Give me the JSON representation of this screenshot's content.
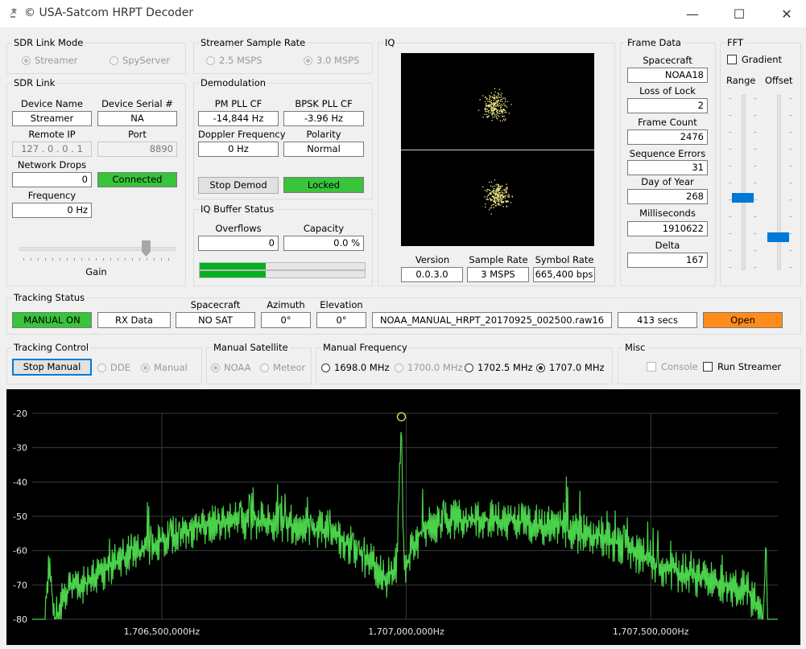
{
  "window": {
    "title": "© USA-Satcom HRPT Decoder",
    "minimize": "—",
    "maximize": "☐",
    "close": "✕"
  },
  "sdr_link_mode": {
    "legend": "SDR Link Mode",
    "options": [
      "Streamer",
      "SpyServer"
    ],
    "selected": "Streamer"
  },
  "streamer_sample_rate": {
    "legend": "Streamer Sample Rate",
    "options": [
      "2.5 MSPS",
      "3.0 MSPS"
    ],
    "selected": "3.0 MSPS"
  },
  "sdr_link": {
    "legend": "SDR Link",
    "device_name_label": "Device Name",
    "device_name": "Streamer",
    "device_serial_label": "Device Serial #",
    "device_serial": "NA",
    "remote_ip_label": "Remote IP",
    "remote_ip": "127 . 0 . 0 . 1",
    "port_label": "Port",
    "port": "8890",
    "network_drops_label": "Network Drops",
    "network_drops": "0",
    "status": "Connected",
    "frequency_label": "Frequency",
    "frequency": "0 Hz",
    "gain_label": "Gain",
    "gain_level": 0.84
  },
  "demodulation": {
    "legend": "Demodulation",
    "pm_pll_label": "PM PLL CF",
    "pm_pll": "-14,844 Hz",
    "bpsk_pll_label": "BPSK PLL CF",
    "bpsk_pll": "-3.96 Hz",
    "doppler_label": "Doppler Frequency",
    "doppler": "0 Hz",
    "polarity_label": "Polarity",
    "polarity": "Normal",
    "stop_button": "Stop Demod",
    "lock_status": "Locked"
  },
  "iq_buffer": {
    "legend": "IQ Buffer Status",
    "overflows_label": "Overflows",
    "overflows": "0",
    "capacity_label": "Capacity",
    "capacity": "0.0 %",
    "bar1_fill": 0.4,
    "bar2_fill": 0.4
  },
  "iq": {
    "legend": "IQ",
    "version_label": "Version",
    "version": "0.0.3.0",
    "sample_rate_label": "Sample Rate",
    "sample_rate": "3 MSPS",
    "symbol_rate_label": "Symbol Rate",
    "symbol_rate": "665,400 bps"
  },
  "frame_data": {
    "legend": "Frame Data",
    "fields": [
      {
        "label": "Spacecraft",
        "value": "NOAA18"
      },
      {
        "label": "Loss of Lock",
        "value": "2"
      },
      {
        "label": "Frame Count",
        "value": "2476"
      },
      {
        "label": "Sequence Errors",
        "value": "31"
      },
      {
        "label": "Day of Year",
        "value": "268"
      },
      {
        "label": "Milliseconds",
        "value": "1910622"
      },
      {
        "label": "Delta",
        "value": "167"
      }
    ]
  },
  "fft": {
    "legend": "FFT",
    "gradient_label": "Gradient",
    "range_label": "Range",
    "offset_label": "Offset",
    "range_level": 0.4,
    "offset_level": 0.16
  },
  "tracking_status": {
    "legend": "Tracking Status",
    "mode": "MANUAL ON",
    "rx": "RX Data",
    "spacecraft_label": "Spacecraft",
    "spacecraft": "NO SAT",
    "azimuth_label": "Azimuth",
    "azimuth": "0°",
    "elevation_label": "Elevation",
    "elevation": "0°",
    "filename": "NOAA_MANUAL_HRPT_20170925_002500.raw16",
    "duration": "413 secs",
    "open_button": "Open"
  },
  "tracking_control": {
    "legend": "Tracking Control",
    "stop_button": "Stop Manual",
    "options": [
      "DDE",
      "Manual"
    ],
    "selected": "Manual"
  },
  "manual_satellite": {
    "legend": "Manual Satellite",
    "options": [
      "NOAA",
      "Meteor"
    ],
    "selected": "NOAA"
  },
  "manual_frequency": {
    "legend": "Manual Frequency",
    "options": [
      "1698.0 MHz",
      "1700.0 MHz",
      "1702.5 MHz",
      "1707.0 MHz"
    ],
    "selected": "1707.0 MHz"
  },
  "misc": {
    "legend": "Misc",
    "console_label": "Console",
    "run_streamer_label": "Run Streamer"
  },
  "chart_data": {
    "type": "line",
    "series": [
      {
        "x": [
          1706230000,
          1706250000,
          1706260000,
          1706270000,
          1706280000,
          1706290000,
          1706300000,
          1706350000,
          1706400000,
          1706450000,
          1706500000,
          1706550000,
          1706600000,
          1706650000,
          1706700000,
          1706750000,
          1706800000,
          1706850000,
          1706900000,
          1706930000,
          1706960000,
          1706980000,
          1706990000,
          1706995000,
          1707000000,
          1707005000,
          1707010000,
          1707030000,
          1707050000,
          1707100000,
          1707150000,
          1707200000,
          1707250000,
          1707300000,
          1707350000,
          1707400000,
          1707450000,
          1707500000,
          1707550000,
          1707600000,
          1707650000,
          1707700000,
          1707720000,
          1707730000,
          1707735000,
          1707740000,
          1707745000,
          1707760000
        ],
        "y": [
          -80,
          -80,
          -80,
          -62,
          -80,
          -78,
          -72,
          -69,
          -64,
          -60,
          -57,
          -54,
          -52,
          -51,
          -51,
          -52,
          -53,
          -55,
          -60,
          -64,
          -68,
          -64,
          -22,
          -64,
          -66,
          -62,
          -60,
          -55,
          -53,
          -51,
          -51,
          -51,
          -52,
          -53,
          -55,
          -56,
          -59,
          -63,
          -66,
          -68,
          -70,
          -72,
          -77,
          -80,
          -62,
          -80,
          -80,
          -80
        ]
      }
    ],
    "ylim": [
      -80,
      -20
    ],
    "yticks": [
      -20,
      -30,
      -40,
      -50,
      -60,
      -70,
      -80
    ],
    "xticks": [
      1706500000,
      1707000000,
      1707500000
    ],
    "xtick_labels": [
      "1,706,500,000Hz",
      "1,707,000,000Hz",
      "1,707,500,000Hz"
    ],
    "xlim": [
      1706235000,
      1707760000
    ],
    "marker": {
      "x": 1706990000,
      "y": -21
    },
    "grid": true,
    "colors": {
      "line": "#4ad24a",
      "background": "#000000",
      "grid": "#3c3c3c"
    }
  }
}
